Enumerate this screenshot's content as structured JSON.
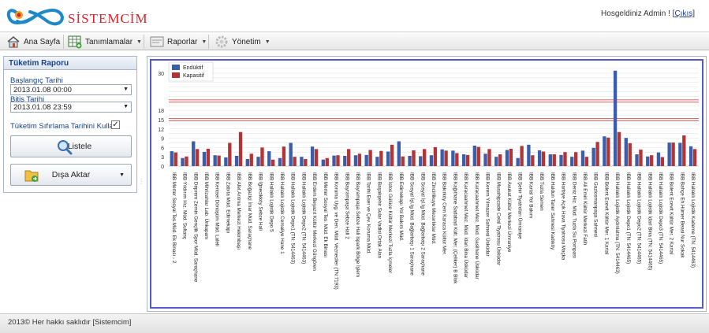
{
  "header": {
    "brand": "SİSTEMCİM",
    "greeting": "Hosgeldiniz Admin ! [",
    "logout": "Çıkış",
    "greeting_end": "]"
  },
  "menu": {
    "items": [
      {
        "label": "Ana Sayfa",
        "icon": "home-icon"
      },
      {
        "label": "Tanımlamalar",
        "icon": "table-icon"
      },
      {
        "label": "Raporlar",
        "icon": "report-icon"
      },
      {
        "label": "Yönetim",
        "icon": "gear-icon"
      }
    ]
  },
  "panel": {
    "title": "Tüketim Raporu",
    "start_label": "Başlangıç Tarihi",
    "start_value": "2013.01.08 00:00",
    "end_label": "Bitiş Tarihi",
    "end_value": "2013.01.08 23:59",
    "checkbox_label": "Tüketim Sıfırlama Tarihini Kullan",
    "checkbox_checked": "✓",
    "list_button": "Listele",
    "export_button": "Dışa Aktar"
  },
  "footer": {
    "text": "2013© Her hakkı saklıdır [Sistemcim]"
  },
  "chart_data": {
    "type": "bar",
    "legend": [
      "Endüktif",
      "Kapasitif"
    ],
    "legend_position": "top-left",
    "colors": {
      "Endüktif": "#3a5eab",
      "Kapasitif": "#b23434",
      "threshold": "#e05050"
    },
    "y_ticks": [
      0,
      3,
      6,
      9,
      12,
      15,
      18,
      30
    ],
    "grid": true,
    "categories": [
      "IBB Merter Sosyal Tes.Müd. Ek Binası - 2",
      "IBB Yıldırım Hız. Müd. Sultanç",
      "IBB Deprem Zemin Gençlik Spor Müd. Saraçhane",
      "IBB Mihrizahlar Lab. Ünkapanı",
      "IBB Kentsel Dönüşüm Müd. Laleli",
      "IBB Zabıta Müd. Edirnekapı",
      "IBB Afet Arıtma Merkezi Hekimbaşı",
      "IBB Boğaziçi İmar Müd. Saraçhane",
      "IBB İğnecikköy Sebze Hali",
      "IBB Hallaklı Lojistik Depo 5",
      "IBB Hallaklı Lojistik Cemaliye Hane 1",
      "IBB Hallaklı Lojistik Depo1 (TN: 5414463)",
      "IBB Hallaklı Lojistik Depo2 (TN: 5414463)",
      "IBB Erdem Beyazıt Kültür Merkezi Güngören",
      "IBB Merter Sosyal Tes. Müd. Ek Binası",
      "IBB Koruma Uyg. ve Den. Müd. Vezneciler (TN:7193)",
      "IBB Bayrampaşa Sebze Hali 2",
      "IBB Bayrampaşa Sebze Hali Ispark Bölge İşlem",
      "IBB Tarihi Eser ve Çev. Koruma Müd.",
      "IBB Başakşehir Sular Vadisi Ortak Alan",
      "IBB İstos Gülüce Kültür Merkezi Tuzla İçmeler",
      "IBB Edirnekapı Yol Bakım Müd.",
      "IBB Sosyal İşl.Ig.Müd. Bağlarbaşı 1 Saraçhane",
      "IBB Sosyal İşl.Ig.Müd. Bağlarbaşı 2 Saraçhane",
      "IBB Zincirlikuyu Mezarlıklar Müd.",
      "IBB Bakırköy Cem Karaca Kültür Mer.",
      "IBB Kağıthane Sadabad Kült. Mer. (Çeliker) B Blok",
      "IBB Karacaahmet Mez. Müd. İdari Bina Üsküdar",
      "IBB Karacaahmet Mez. Müd. Gasilhane Üsküdar",
      "IBB Kerem Yılmazer Sahnesi Üsküdar",
      "IBB Musahipzade Celal Tiyatrosu Üsküdar",
      "IBB Avukat Kültür Merkezi Ümraniye",
      "IBB Şehir Tiyatroları Ümraniye",
      "IBB Kartal Yol Bakım",
      "IBB Tuzla Semen",
      "IBB Haldun Taner Sahnesi Kadıköy",
      "IBB Harbiye Açık Hava Tiyatrosu Maçka",
      "IBB Deniz Hiz. Müd. Tuzla Su Pompası",
      "IBB Ali Emiri Kültür Merkezi Fatih",
      "IBB Gaziosmanpaşa Sahnesi",
      "IBB Bülent Ecevit Kültür Mer. 1 Kartal",
      "IBB Hallaklı Lojistik Aydınlatma (TN: 5414463)",
      "IBB Hallaklı Lojistik Depo1 (TN: 5414465)",
      "IBB Hallaklı Lojistik Depo2 (TN: 5414465)",
      "IBB Hallaklı Lojistik İdari Bina (TN: 5414465)",
      "IBB Hallaklı Lojistik Depo3 (TN: 5414465)",
      "IBB Bülent Ecevit Kültür Mer. 2 Kartal",
      "IBB Bahçe Eh.Hümer Beasi Nur Sokak",
      "IBB Hallaklı Lojistik Kademe (TN: 5414463)"
    ],
    "series": [
      {
        "name": "Endüktif",
        "values": [
          4.8,
          2.6,
          8.0,
          4.6,
          3.5,
          2.8,
          3.3,
          2.3,
          3.0,
          4.8,
          2.6,
          7.5,
          3.0,
          6.3,
          2.1,
          3.4,
          3.3,
          3.5,
          3.6,
          3.0,
          4.7,
          8.0,
          3.3,
          3.2,
          3.5,
          5.4,
          5.0,
          3.8,
          6.6,
          4.0,
          3.0,
          5.2,
          2.6,
          6.9,
          5.1,
          3.8,
          3.6,
          3.0,
          5.0,
          5.9,
          9.6,
          30.8,
          9.1,
          3.8,
          3.1,
          4.4,
          7.6,
          7.5,
          6.4
        ]
      },
      {
        "name": "Kapasitif",
        "values": [
          4.4,
          3.1,
          5.5,
          5.6,
          3.4,
          7.5,
          11.0,
          4.0,
          6.0,
          2.1,
          6.3,
          3.0,
          2.3,
          5.5,
          2.6,
          3.5,
          5.5,
          4.0,
          5.2,
          4.9,
          6.9,
          3.1,
          5.1,
          5.5,
          6.1,
          5.0,
          4.2,
          3.6,
          6.2,
          5.5,
          3.8,
          5.6,
          6.5,
          3.5,
          4.7,
          3.8,
          4.5,
          4.5,
          3.0,
          7.8,
          9.2,
          11.0,
          7.4,
          5.3,
          3.5,
          2.9,
          7.6,
          9.9,
          5.5
        ]
      }
    ],
    "thresholds": [
      21,
      15
    ]
  }
}
